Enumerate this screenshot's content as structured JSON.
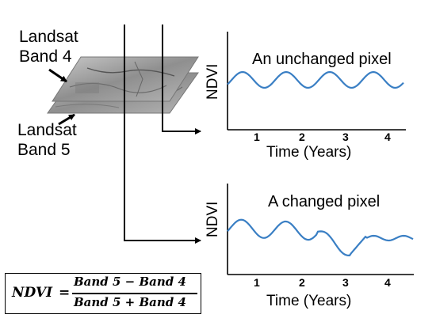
{
  "band4_label": [
    "Landsat",
    "Band 4"
  ],
  "band5_label": [
    "Landsat",
    "Band 5"
  ],
  "charts": [
    {
      "subtitle": "An unchanged pixel",
      "ylabel": "NDVI",
      "xlabel": "Time (Years)",
      "x_ticks": [
        "1",
        "2",
        "3",
        "4"
      ],
      "pattern": "steady seasonal oscillation"
    },
    {
      "subtitle": "A changed pixel",
      "ylabel": "NDVI",
      "xlabel": "Time (Years)",
      "x_ticks": [
        "1",
        "2",
        "3",
        "4"
      ],
      "pattern": "seasonal oscillation with drop after year 3"
    }
  ],
  "formula": {
    "lhs": "NDVI",
    "equals": "=",
    "numerator": "Band 5 − Band 4",
    "denominator": "Band 5 + Band 4"
  },
  "colors": {
    "line": "#3a7fc4",
    "ink": "#000000",
    "tile": "#9a9a9a"
  }
}
